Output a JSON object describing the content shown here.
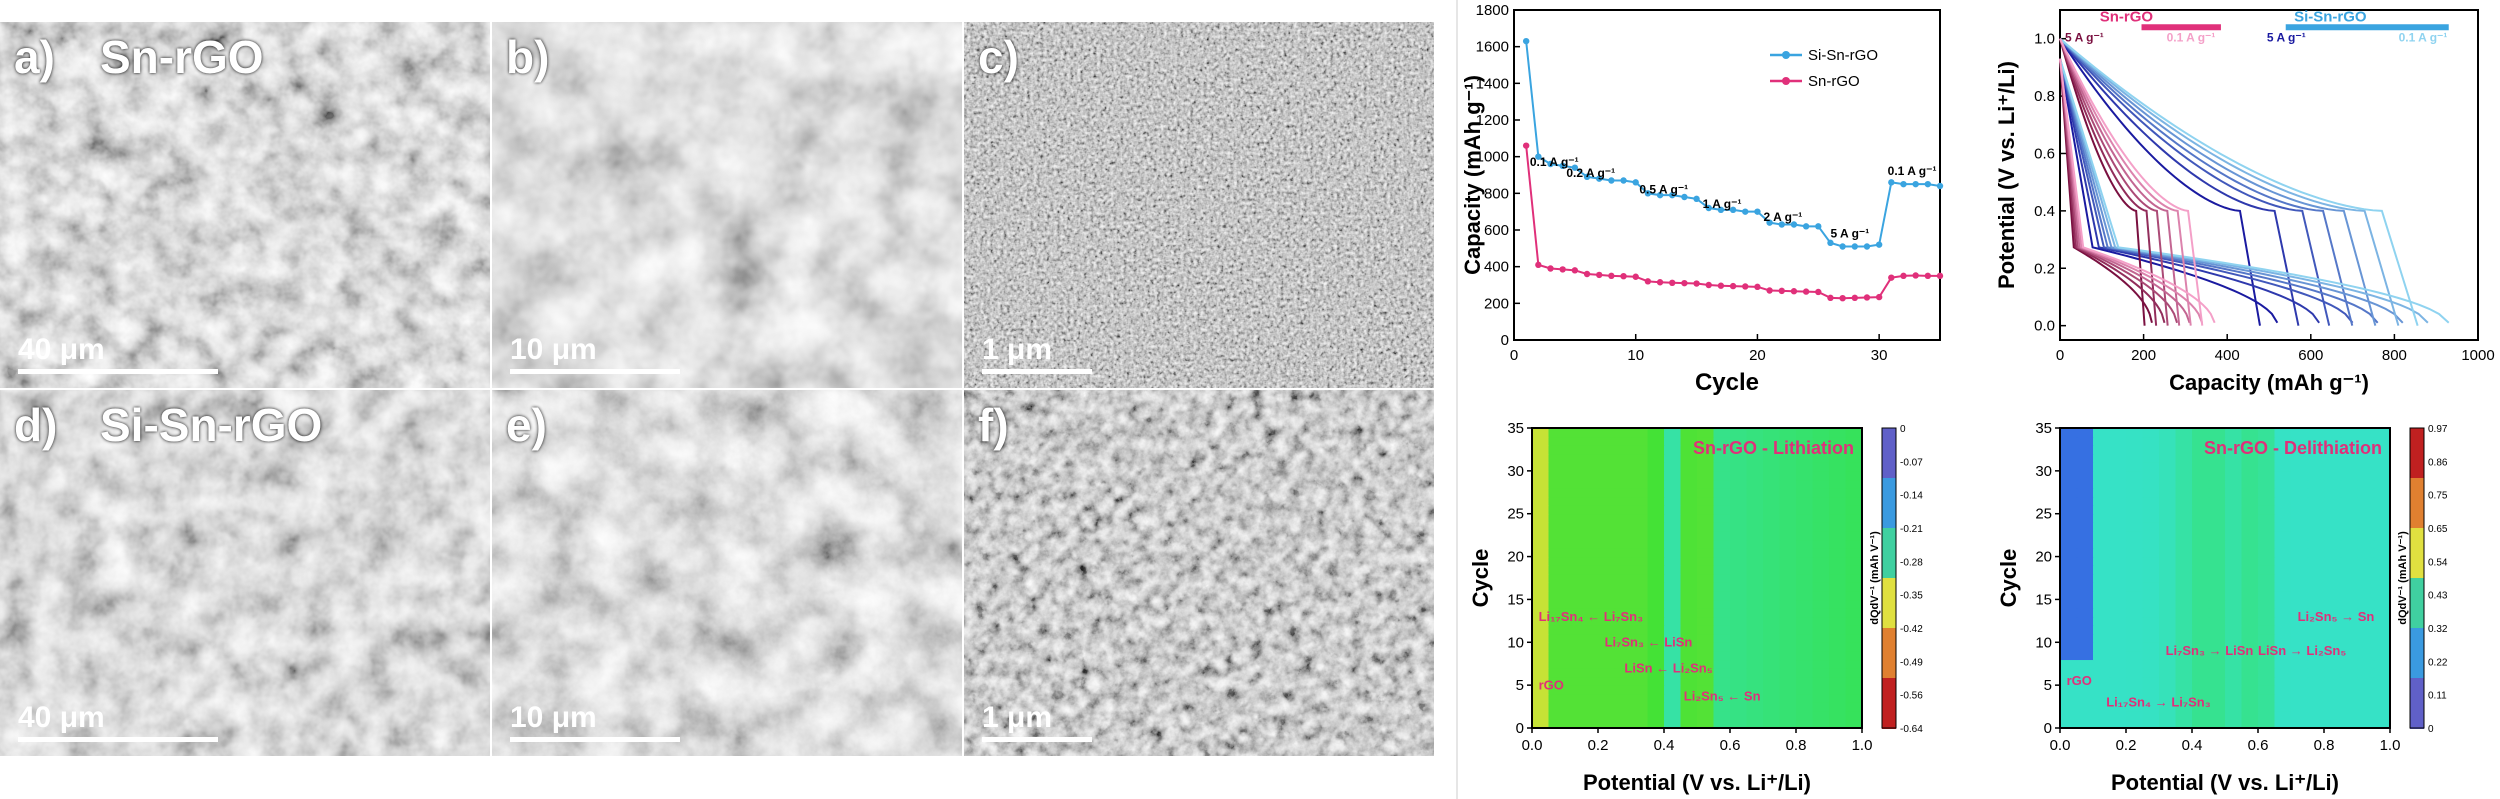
{
  "sem": {
    "a": {
      "letter": "a)",
      "title": "Sn-rGO",
      "scale": "40 μm"
    },
    "b": {
      "letter": "b)",
      "scale": "10 μm"
    },
    "c": {
      "letter": "c)",
      "scale": "1 μm"
    },
    "d": {
      "letter": "d)",
      "title": "Si-Sn-rGO",
      "scale": "40 μm"
    },
    "e": {
      "letter": "e)",
      "scale": "10 μm"
    },
    "f": {
      "letter": "f)",
      "scale": "1 μm"
    }
  },
  "colors": {
    "si_sn_rgo": "#3aa4e0",
    "sn_rgo": "#e0307a",
    "annotation": "#e0307a"
  },
  "chart_data": [
    {
      "type": "line",
      "xlabel": "Cycle",
      "ylabel": "Capacity (mAh g⁻¹)",
      "xlim": [
        0,
        35
      ],
      "ylim": [
        0,
        1800
      ],
      "xticks": [
        0,
        10,
        20,
        30
      ],
      "yticks": [
        0,
        200,
        400,
        600,
        800,
        1000,
        1200,
        1400,
        1600,
        1800
      ],
      "legend": "top-right",
      "rate_labels": [
        "0.1 A g⁻¹",
        "0.2 A g⁻¹",
        "0.5 A g⁻¹",
        "1 A g⁻¹",
        "2 A g⁻¹",
        "5 A g⁻¹",
        "0.1 A g⁻¹"
      ],
      "series": [
        {
          "name": "Si-Sn-rGO",
          "x": [
            1,
            2,
            3,
            4,
            5,
            6,
            7,
            8,
            9,
            10,
            11,
            12,
            13,
            14,
            15,
            16,
            17,
            18,
            19,
            20,
            21,
            22,
            23,
            24,
            25,
            26,
            27,
            28,
            29,
            30,
            31,
            32,
            33,
            34,
            35
          ],
          "values": [
            1630,
            1000,
            960,
            950,
            940,
            890,
            880,
            870,
            870,
            860,
            800,
            790,
            790,
            780,
            770,
            720,
            710,
            710,
            700,
            700,
            640,
            630,
            630,
            620,
            620,
            530,
            510,
            510,
            510,
            520,
            860,
            850,
            850,
            850,
            840
          ]
        },
        {
          "name": "Sn-rGO",
          "x": [
            1,
            2,
            3,
            4,
            5,
            6,
            7,
            8,
            9,
            10,
            11,
            12,
            13,
            14,
            15,
            16,
            17,
            18,
            19,
            20,
            21,
            22,
            23,
            24,
            25,
            26,
            27,
            28,
            29,
            30,
            31,
            32,
            33,
            34,
            35
          ],
          "values": [
            1060,
            410,
            390,
            385,
            380,
            360,
            355,
            350,
            348,
            345,
            320,
            315,
            312,
            310,
            308,
            300,
            296,
            294,
            292,
            290,
            270,
            268,
            266,
            264,
            262,
            230,
            228,
            230,
            232,
            234,
            340,
            350,
            352,
            350,
            350
          ]
        }
      ]
    },
    {
      "type": "line",
      "xlabel": "Capacity (mAh g⁻¹)",
      "ylabel": "Potential (V vs. Li⁺/Li)",
      "xlim": [
        0,
        1000
      ],
      "ylim": [
        -0.05,
        1.1
      ],
      "xticks": [
        0,
        200,
        400,
        600,
        800,
        1000
      ],
      "yticks": [
        0.0,
        0.2,
        0.4,
        0.6,
        0.8,
        1.0
      ],
      "labels": [
        "Sn-rGO",
        "Si-Sn-rGO",
        "5 A g⁻¹",
        "0.1 A g⁻¹",
        "5 A g⁻¹",
        "0.1 A g⁻¹"
      ],
      "sn_rgo_capacities": [
        220,
        250,
        280,
        310,
        340,
        370
      ],
      "si_sn_rgo_capacities": [
        520,
        620,
        700,
        760,
        820,
        880,
        930
      ]
    },
    {
      "type": "heatmap",
      "title": "Sn-rGO - Lithiation",
      "xlabel": "Potential (V vs. Li⁺/Li)",
      "ylabel": "Cycle",
      "colorbar_label": "dQdV⁻¹ (mAh V⁻¹)",
      "xlim": [
        0,
        1.0
      ],
      "ylim": [
        0,
        35
      ],
      "xticks": [
        "0.0",
        "0.2",
        "0.4",
        "0.6",
        "0.8",
        "1.0"
      ],
      "yticks": [
        "0",
        "5",
        "10",
        "15",
        "20",
        "25",
        "30",
        "35"
      ],
      "colorbar_ticks": [
        "0",
        "-0.07",
        "-0.14",
        "-0.21",
        "-0.28",
        "-0.35",
        "-0.42",
        "-0.49",
        "-0.56",
        "-0.64"
      ],
      "annotations": [
        "Li₁₇Sn₄ ← Li₇Sn₃",
        "Li₇Sn₃ ← LiSn",
        "LiSn ← Li₂Sn₅",
        "Li₂Sn₅ ← Sn",
        "rGO"
      ]
    },
    {
      "type": "heatmap",
      "title": "Sn-rGO - Delithiation",
      "xlabel": "Potential (V vs. Li⁺/Li)",
      "ylabel": "Cycle",
      "colorbar_label": "dQdV⁻¹ (mAh V⁻¹)",
      "xlim": [
        0,
        1.0
      ],
      "ylim": [
        0,
        35
      ],
      "xticks": [
        "0.0",
        "0.2",
        "0.4",
        "0.6",
        "0.8",
        "1.0"
      ],
      "yticks": [
        "0",
        "5",
        "10",
        "15",
        "20",
        "25",
        "30",
        "35"
      ],
      "colorbar_ticks": [
        "0.97",
        "0.86",
        "0.75",
        "0.65",
        "0.54",
        "0.43",
        "0.32",
        "0.22",
        "0.11",
        "0"
      ],
      "annotations": [
        "Li₂Sn₅ → Sn",
        "LiSn → Li₂Sn₅",
        "Li₇Sn₃ → LiSn",
        "Li₁₇Sn₄ → Li₇Sn₃",
        "rGO"
      ]
    }
  ]
}
